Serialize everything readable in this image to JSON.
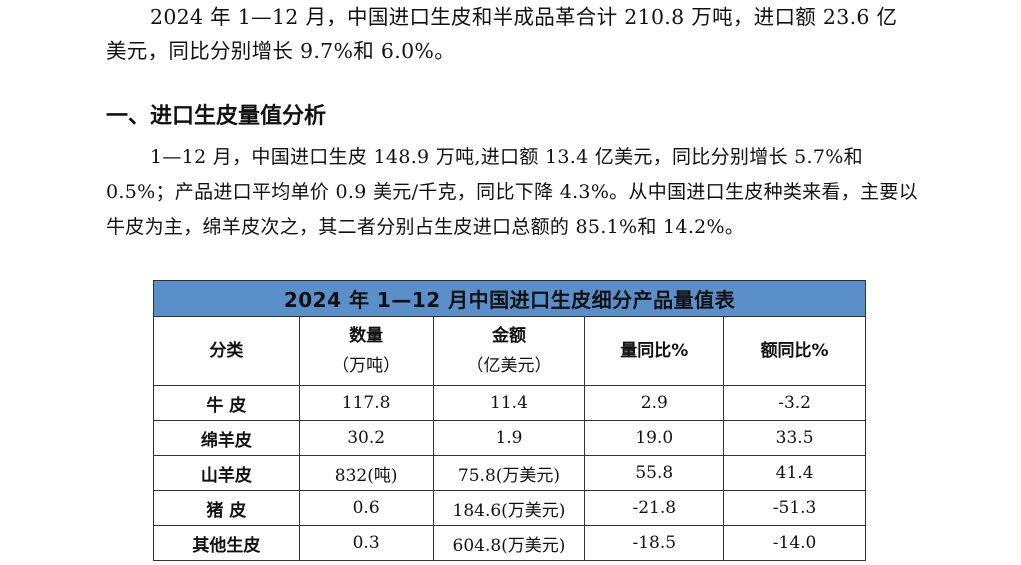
{
  "intro_paragraph": "2024 年 1—12 月，中国进口生皮和半成品革合计 210.8 万吨，进口额 23.6 亿美元，同比分别增长 9.7%和 6.0%。",
  "section_heading": "一、进口生皮量值分析",
  "section_paragraph": "1—12 月，中国进口生皮 148.9 万吨,进口额 13.4 亿美元，同比分别增长 5.7%和 0.5%；产品进口平均单价 0.9 美元/千克，同比下降 4.3%。从中国进口生皮种类来看，主要以牛皮为主，绵羊皮次之，其二者分别占生皮进口总额的 85.1%和 14.2%。",
  "table": {
    "caption": "2024 年 1—12 月中国进口生皮细分产品量值表",
    "caption_color": "#5b8fc9",
    "headers": {
      "category": "分类",
      "quantity": "数量",
      "quantity_unit": "（万吨）",
      "amount": "金额",
      "amount_unit": "（亿美元）",
      "qty_yoy": "量同比%",
      "amt_yoy": "额同比%"
    },
    "rows": [
      {
        "category": "牛  皮",
        "quantity": "117.8",
        "amount": "11.4",
        "qty_yoy": "2.9",
        "amt_yoy": "-3.2"
      },
      {
        "category": "绵羊皮",
        "quantity": "30.2",
        "amount": "1.9",
        "qty_yoy": "19.0",
        "amt_yoy": "33.5"
      },
      {
        "category": "山羊皮",
        "quantity": "832(吨)",
        "amount": "75.8(万美元)",
        "qty_yoy": "55.8",
        "amt_yoy": "41.4"
      },
      {
        "category": "猪  皮",
        "quantity": "0.6",
        "amount": "184.6(万美元)",
        "qty_yoy": "-21.8",
        "amt_yoy": "-51.3"
      },
      {
        "category": "其他生皮",
        "quantity": "0.3",
        "amount": "604.8(万美元)",
        "qty_yoy": "-18.5",
        "amt_yoy": "-14.0"
      }
    ]
  }
}
